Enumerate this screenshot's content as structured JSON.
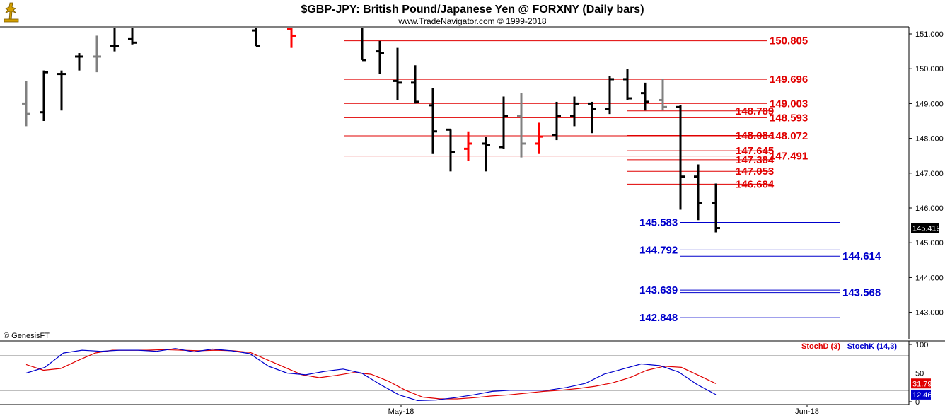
{
  "header": {
    "title": "$GBP-JPY:  British Pound/Japanese Yen @ FORXNY  (Daily bars)",
    "subtitle": "www.TradeNavigator.com © 1999-2018"
  },
  "credit": "© GenesisFT",
  "colors": {
    "up_level": "#e00000",
    "down_level": "#0000cc",
    "grid": "#000000",
    "bar": "#000000",
    "bar_gray": "#808080",
    "bar_red": "#ff0000",
    "stoch_d": "#e00000",
    "stoch_k": "#0000cc"
  },
  "chart_data": [
    {
      "type": "ohlc",
      "title": "$GBP-JPY:  British Pound/Japanese Yen @ FORXNY  (Daily bars)",
      "ylim": [
        142.3,
        151.35
      ],
      "yticks": [
        "151.000",
        "150.000",
        "149.000",
        "148.000",
        "147.000",
        "146.000",
        "145.000",
        "144.000",
        "143.000"
      ],
      "xlabels": [
        "May-18",
        "Jun-18"
      ],
      "last_price": "145.419",
      "bars": [
        {
          "o": 149.0,
          "h": 149.65,
          "l": 148.35,
          "c": 148.7,
          "color": "gray"
        },
        {
          "o": 148.75,
          "h": 149.95,
          "l": 148.5,
          "c": 149.9,
          "color": "black"
        },
        {
          "o": 149.85,
          "h": 149.95,
          "l": 148.8,
          "c": 149.85,
          "color": "black"
        },
        {
          "o": 150.35,
          "h": 150.45,
          "l": 149.95,
          "c": 150.35,
          "color": "black"
        },
        {
          "o": 150.35,
          "h": 150.95,
          "l": 149.9,
          "c": 150.35,
          "color": "gray"
        },
        {
          "o": 150.65,
          "h": 151.3,
          "l": 150.5,
          "c": 150.65,
          "color": "black"
        },
        {
          "o": 150.85,
          "h": 151.3,
          "l": 150.7,
          "c": 150.75,
          "color": "black"
        },
        {
          "o": 151.1,
          "h": 151.3,
          "l": 150.65,
          "c": 150.65,
          "color": "black"
        },
        {
          "o": 151.15,
          "h": 151.3,
          "l": 150.6,
          "c": 150.95,
          "color": "red"
        },
        {
          "o": 151.3,
          "h": 151.3,
          "l": 150.25,
          "c": 150.25,
          "color": "black"
        },
        {
          "o": 150.5,
          "h": 150.8,
          "l": 149.85,
          "c": 150.45,
          "color": "black"
        },
        {
          "o": 149.65,
          "h": 150.6,
          "l": 149.1,
          "c": 149.6,
          "color": "black"
        },
        {
          "o": 149.6,
          "h": 150.1,
          "l": 149.0,
          "c": 149.05,
          "color": "black"
        },
        {
          "o": 148.95,
          "h": 149.45,
          "l": 147.55,
          "c": 148.2,
          "color": "black"
        },
        {
          "o": 148.25,
          "h": 148.25,
          "l": 147.05,
          "c": 147.6,
          "color": "black"
        },
        {
          "o": 147.7,
          "h": 148.2,
          "l": 147.35,
          "c": 147.85,
          "color": "red"
        },
        {
          "o": 147.85,
          "h": 148.05,
          "l": 147.05,
          "c": 147.8,
          "color": "black"
        },
        {
          "o": 147.75,
          "h": 149.2,
          "l": 147.7,
          "c": 148.65,
          "color": "black"
        },
        {
          "o": 148.65,
          "h": 149.3,
          "l": 147.45,
          "c": 147.85,
          "color": "gray"
        },
        {
          "o": 147.85,
          "h": 148.45,
          "l": 147.55,
          "c": 148.05,
          "color": "red"
        },
        {
          "o": 148.1,
          "h": 149.05,
          "l": 147.95,
          "c": 148.65,
          "color": "black"
        },
        {
          "o": 148.65,
          "h": 149.2,
          "l": 148.35,
          "c": 149.0,
          "color": "black"
        },
        {
          "o": 149.0,
          "h": 149.05,
          "l": 148.15,
          "c": 148.85,
          "color": "black"
        },
        {
          "o": 148.85,
          "h": 149.8,
          "l": 148.7,
          "c": 149.7,
          "color": "black"
        },
        {
          "o": 149.7,
          "h": 150.0,
          "l": 149.1,
          "c": 149.15,
          "color": "black"
        },
        {
          "o": 149.3,
          "h": 149.6,
          "l": 148.8,
          "c": 149.05,
          "color": "black"
        },
        {
          "o": 149.1,
          "h": 149.7,
          "l": 148.8,
          "c": 148.9,
          "color": "gray"
        },
        {
          "o": 148.9,
          "h": 148.95,
          "l": 145.95,
          "c": 146.9,
          "color": "black"
        },
        {
          "o": 146.9,
          "h": 147.25,
          "l": 145.65,
          "c": 146.15,
          "color": "black"
        },
        {
          "o": 146.15,
          "h": 146.7,
          "l": 145.3,
          "c": 145.42,
          "color": "black"
        }
      ],
      "levels": [
        {
          "label": "150.805",
          "value": 150.805,
          "color": "red",
          "span": "long"
        },
        {
          "label": "149.696",
          "value": 149.696,
          "color": "red",
          "span": "long"
        },
        {
          "label": "149.003",
          "value": 149.003,
          "color": "red",
          "span": "long"
        },
        {
          "label": "148.789",
          "value": 148.789,
          "color": "red",
          "span": "short"
        },
        {
          "label": "148.593",
          "value": 148.593,
          "color": "red",
          "span": "long"
        },
        {
          "label": "148.084",
          "value": 148.084,
          "color": "red",
          "span": "short"
        },
        {
          "label": "148.072",
          "value": 148.072,
          "color": "red",
          "span": "long"
        },
        {
          "label": "147.645",
          "value": 147.645,
          "color": "red",
          "span": "short"
        },
        {
          "label": "147.491",
          "value": 147.491,
          "color": "red",
          "span": "long"
        },
        {
          "label": "147.384",
          "value": 147.384,
          "color": "red",
          "span": "short"
        },
        {
          "label": "147.053",
          "value": 147.053,
          "color": "red",
          "span": "short"
        },
        {
          "label": "146.684",
          "value": 146.684,
          "color": "red",
          "span": "short"
        },
        {
          "label": "145.583",
          "value": 145.583,
          "color": "blue",
          "span": "left"
        },
        {
          "label": "144.792",
          "value": 144.792,
          "color": "blue",
          "span": "left"
        },
        {
          "label": "144.614",
          "value": 144.614,
          "color": "blue",
          "span": "right"
        },
        {
          "label": "143.639",
          "value": 143.639,
          "color": "blue",
          "span": "left"
        },
        {
          "label": "143.568",
          "value": 143.568,
          "color": "blue",
          "span": "right"
        },
        {
          "label": "142.848",
          "value": 142.848,
          "color": "blue",
          "span": "left"
        }
      ]
    },
    {
      "type": "line",
      "title": "Stochastic",
      "ylim": [
        0,
        100
      ],
      "yticks": [
        "100",
        "50",
        "0"
      ],
      "reference_lines": [
        80,
        20
      ],
      "series": [
        {
          "name": "StochD (3)",
          "color": "red",
          "last": "31.79",
          "values": [
            65,
            55,
            58,
            72,
            85,
            90,
            90,
            90,
            91,
            90,
            89,
            90,
            89,
            86,
            73,
            60,
            47,
            42,
            46,
            51,
            48,
            36,
            20,
            8,
            5,
            5,
            7,
            10,
            12,
            15,
            18,
            20,
            23,
            27,
            33,
            42,
            55,
            62,
            60,
            46,
            31.79
          ]
        },
        {
          "name": "StochK (14,3)",
          "color": "blue",
          "last": "12.46",
          "values": [
            50,
            60,
            85,
            90,
            88,
            90,
            90,
            88,
            93,
            87,
            92,
            89,
            84,
            62,
            50,
            47,
            53,
            57,
            50,
            30,
            12,
            2,
            3,
            7,
            12,
            18,
            20,
            20,
            20,
            25,
            32,
            48,
            57,
            66,
            63,
            52,
            30,
            12.46
          ]
        }
      ],
      "xlabels": [
        "May-18",
        "Jun-18"
      ]
    }
  ]
}
